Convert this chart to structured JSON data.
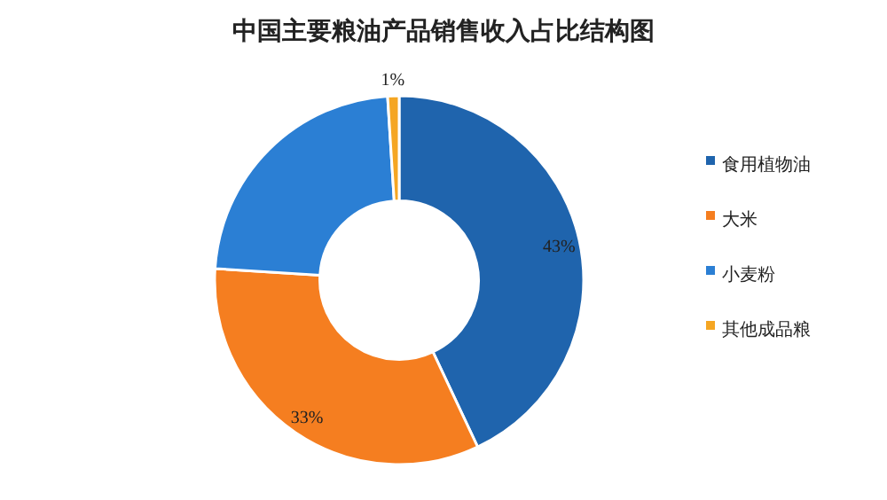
{
  "chart_data": {
    "type": "donut",
    "title": "中国主要粮油产品销售收入占比结构图",
    "categories": [
      "食用植物油",
      "大米",
      "小麦粉",
      "其他成品粮"
    ],
    "values": [
      43,
      33,
      23,
      1
    ],
    "colors": [
      "#1f64ad",
      "#f57e20",
      "#2b7fd4",
      "#f5a623"
    ],
    "value_labels": [
      "43%",
      "33%",
      null,
      "1%"
    ],
    "legend": "right"
  }
}
